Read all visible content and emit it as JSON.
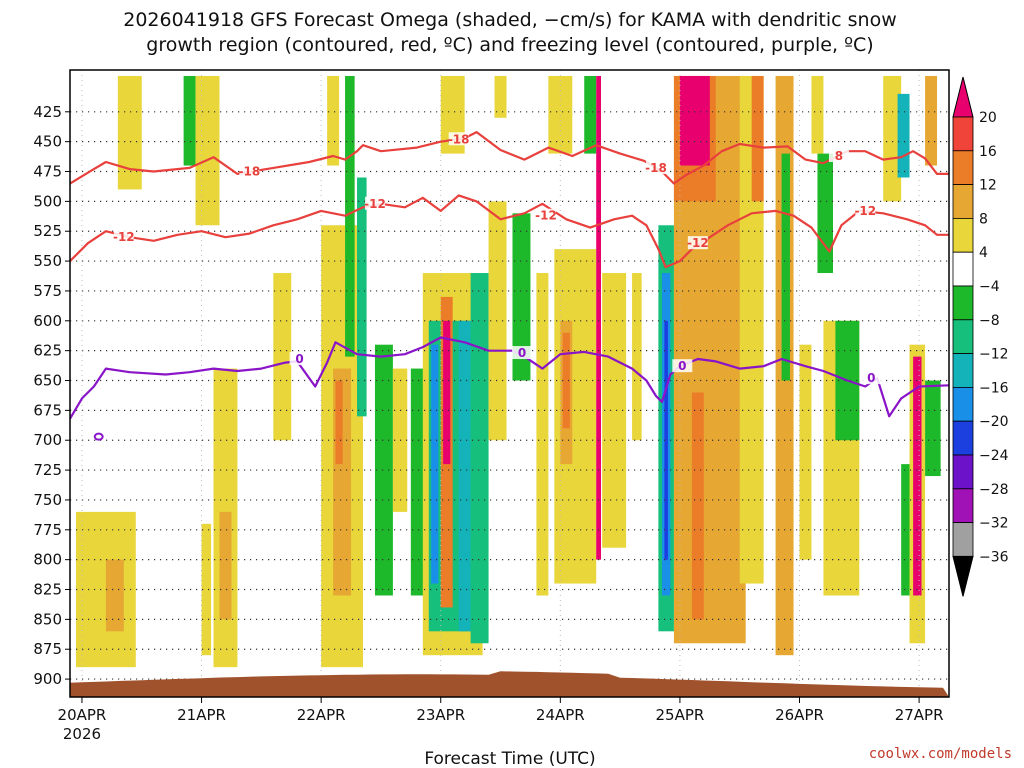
{
  "chart_data": {
    "type": "heatmap",
    "title_line1": "2026041918 GFS Forecast Omega (shaded, −cm/s) for KAMA with dendritic snow",
    "title_line2": "growth region (contoured, red, ºC) and freezing level (contoured, purple, ºC)",
    "xlabel": "Forecast Time (UTC)",
    "credit": "coolwx.com/models",
    "x_ticks": [
      "20APR",
      "21APR",
      "22APR",
      "23APR",
      "24APR",
      "25APR",
      "26APR",
      "27APR"
    ],
    "x_tick_sub": "2026",
    "x_range_days": [
      -0.1,
      7.25
    ],
    "y_ticks": [
      "425",
      "450",
      "475",
      "500",
      "525",
      "550",
      "575",
      "600",
      "625",
      "650",
      "675",
      "700",
      "725",
      "750",
      "775",
      "800",
      "825",
      "850",
      "875",
      "900"
    ],
    "y_range_hpa": [
      390,
      915
    ],
    "colorbar": {
      "labels": [
        "20",
        "16",
        "12",
        "8",
        "4",
        "−4",
        "−8",
        "−12",
        "−16",
        "−20",
        "−24",
        "−28",
        "−32",
        "−36"
      ],
      "colors": [
        "#e8006e",
        "#f0443a",
        "#ec7d28",
        "#e6a733",
        "#e8d63a",
        "#ffffff",
        "#1eb82b",
        "#16c07c",
        "#14b3ba",
        "#1a8fe8",
        "#1c3fe0",
        "#6c12c8",
        "#a012b5",
        "#a0a0a0",
        "#000000"
      ]
    },
    "contour_labels": {
      "dendritic_minus18": "-18",
      "dendritic_minus12": "-12",
      "dendritic_minus8": "8",
      "freezing": "0"
    },
    "contour_colors": {
      "dendritic": "#e8403c",
      "freezing": "#8a14c8"
    },
    "ground_color": "#a0522d",
    "omega_features": [
      {
        "x0": -0.05,
        "x1": 0.45,
        "p0": 760,
        "p1": 890,
        "v": 4
      },
      {
        "x0": 0.2,
        "x1": 0.35,
        "p0": 800,
        "p1": 860,
        "v": 8
      },
      {
        "x0": 0.3,
        "x1": 0.5,
        "p0": 395,
        "p1": 490,
        "v": 4
      },
      {
        "x0": 0.85,
        "x1": 0.95,
        "p0": 395,
        "p1": 470,
        "v": -6
      },
      {
        "x0": 0.95,
        "x1": 1.15,
        "p0": 395,
        "p1": 520,
        "v": 4
      },
      {
        "x0": 1.1,
        "x1": 1.3,
        "p0": 640,
        "p1": 890,
        "v": 4
      },
      {
        "x0": 1.15,
        "x1": 1.25,
        "p0": 760,
        "p1": 850,
        "v": 8
      },
      {
        "x0": 1.0,
        "x1": 1.08,
        "p0": 770,
        "p1": 880,
        "v": 4
      },
      {
        "x0": 1.6,
        "x1": 1.75,
        "p0": 560,
        "p1": 700,
        "v": 4
      },
      {
        "x0": 2.0,
        "x1": 2.35,
        "p0": 520,
        "p1": 890,
        "v": 4
      },
      {
        "x0": 2.1,
        "x1": 2.25,
        "p0": 640,
        "p1": 830,
        "v": 8
      },
      {
        "x0": 2.12,
        "x1": 2.18,
        "p0": 650,
        "p1": 720,
        "v": 12
      },
      {
        "x0": 2.05,
        "x1": 2.15,
        "p0": 395,
        "p1": 470,
        "v": 4
      },
      {
        "x0": 2.2,
        "x1": 2.28,
        "p0": 395,
        "p1": 630,
        "v": -6
      },
      {
        "x0": 2.3,
        "x1": 2.38,
        "p0": 480,
        "p1": 680,
        "v": -10
      },
      {
        "x0": 2.45,
        "x1": 2.6,
        "p0": 620,
        "p1": 830,
        "v": -6
      },
      {
        "x0": 2.6,
        "x1": 2.72,
        "p0": 640,
        "p1": 760,
        "v": 4
      },
      {
        "x0": 2.75,
        "x1": 2.9,
        "p0": 640,
        "p1": 830,
        "v": -6
      },
      {
        "x0": 2.92,
        "x1": 3.0,
        "p0": 700,
        "p1": 850,
        "v": 4
      },
      {
        "x0": 2.85,
        "x1": 3.35,
        "p0": 560,
        "p1": 880,
        "v": 4
      },
      {
        "x0": 2.9,
        "x1": 3.35,
        "p0": 600,
        "p1": 860,
        "v": -10
      },
      {
        "x0": 2.92,
        "x1": 2.98,
        "p0": 620,
        "p1": 820,
        "v": -18
      },
      {
        "x0": 3.0,
        "x1": 3.1,
        "p0": 580,
        "p1": 840,
        "v": 14
      },
      {
        "x0": 3.02,
        "x1": 3.08,
        "p0": 600,
        "p1": 720,
        "v": 20
      },
      {
        "x0": 3.15,
        "x1": 3.25,
        "p0": 600,
        "p1": 860,
        "v": -14
      },
      {
        "x0": 3.25,
        "x1": 3.4,
        "p0": 560,
        "p1": 870,
        "v": -8
      },
      {
        "x0": 3.0,
        "x1": 3.2,
        "p0": 395,
        "p1": 460,
        "v": 4
      },
      {
        "x0": 3.4,
        "x1": 3.55,
        "p0": 500,
        "p1": 700,
        "v": 4
      },
      {
        "x0": 3.45,
        "x1": 3.55,
        "p0": 395,
        "p1": 430,
        "v": 4
      },
      {
        "x0": 3.6,
        "x1": 3.75,
        "p0": 510,
        "p1": 650,
        "v": -6
      },
      {
        "x0": 3.8,
        "x1": 3.9,
        "p0": 560,
        "p1": 830,
        "v": 4
      },
      {
        "x0": 3.9,
        "x1": 4.1,
        "p0": 395,
        "p1": 460,
        "v": 4
      },
      {
        "x0": 3.95,
        "x1": 4.3,
        "p0": 540,
        "p1": 820,
        "v": 4
      },
      {
        "x0": 4.0,
        "x1": 4.1,
        "p0": 600,
        "p1": 720,
        "v": 8
      },
      {
        "x0": 4.02,
        "x1": 4.08,
        "p0": 610,
        "p1": 690,
        "v": 14
      },
      {
        "x0": 4.2,
        "x1": 4.3,
        "p0": 395,
        "p1": 460,
        "v": -6
      },
      {
        "x0": 4.3,
        "x1": 4.34,
        "p0": 395,
        "p1": 800,
        "v": 20
      },
      {
        "x0": 4.35,
        "x1": 4.55,
        "p0": 560,
        "p1": 790,
        "v": 4
      },
      {
        "x0": 4.6,
        "x1": 4.68,
        "p0": 560,
        "p1": 700,
        "v": 4
      },
      {
        "x0": 4.82,
        "x1": 4.95,
        "p0": 520,
        "p1": 860,
        "v": -8
      },
      {
        "x0": 4.85,
        "x1": 4.92,
        "p0": 560,
        "p1": 830,
        "v": -16
      },
      {
        "x0": 4.87,
        "x1": 4.9,
        "p0": 600,
        "p1": 800,
        "v": -22
      },
      {
        "x0": 4.95,
        "x1": 5.55,
        "p0": 395,
        "p1": 870,
        "v": 9
      },
      {
        "x0": 4.95,
        "x1": 5.3,
        "p0": 395,
        "p1": 500,
        "v": 13
      },
      {
        "x0": 5.0,
        "x1": 5.25,
        "p0": 395,
        "p1": 470,
        "v": 20
      },
      {
        "x0": 5.1,
        "x1": 5.2,
        "p0": 660,
        "p1": 850,
        "v": 14
      },
      {
        "x0": 5.5,
        "x1": 5.7,
        "p0": 395,
        "p1": 820,
        "v": 4
      },
      {
        "x0": 5.6,
        "x1": 5.7,
        "p0": 395,
        "p1": 500,
        "v": 12
      },
      {
        "x0": 5.8,
        "x1": 5.95,
        "p0": 395,
        "p1": 880,
        "v": 8
      },
      {
        "x0": 5.85,
        "x1": 5.92,
        "p0": 460,
        "p1": 650,
        "v": -6
      },
      {
        "x0": 6.0,
        "x1": 6.1,
        "p0": 620,
        "p1": 800,
        "v": 4
      },
      {
        "x0": 6.15,
        "x1": 6.28,
        "p0": 460,
        "p1": 560,
        "v": -6
      },
      {
        "x0": 6.1,
        "x1": 6.2,
        "p0": 395,
        "p1": 460,
        "v": 4
      },
      {
        "x0": 6.2,
        "x1": 6.5,
        "p0": 600,
        "p1": 830,
        "v": 4
      },
      {
        "x0": 6.3,
        "x1": 6.5,
        "p0": 600,
        "p1": 700,
        "v": -6
      },
      {
        "x0": 6.7,
        "x1": 6.85,
        "p0": 395,
        "p1": 500,
        "v": 4
      },
      {
        "x0": 6.82,
        "x1": 6.92,
        "p0": 410,
        "p1": 480,
        "v": -12
      },
      {
        "x0": 6.85,
        "x1": 6.95,
        "p0": 720,
        "p1": 830,
        "v": -6
      },
      {
        "x0": 6.92,
        "x1": 7.05,
        "p0": 620,
        "p1": 870,
        "v": 4
      },
      {
        "x0": 6.95,
        "x1": 7.02,
        "p0": 630,
        "p1": 830,
        "v": 20
      },
      {
        "x0": 7.05,
        "x1": 7.15,
        "p0": 395,
        "p1": 470,
        "v": 8
      },
      {
        "x0": 7.05,
        "x1": 7.18,
        "p0": 650,
        "p1": 730,
        "v": -6
      }
    ],
    "minus18_line": [
      [
        -0.1,
        485
      ],
      [
        0.1,
        473
      ],
      [
        0.2,
        467
      ],
      [
        0.4,
        473
      ],
      [
        0.6,
        475
      ],
      [
        0.9,
        472
      ],
      [
        1.1,
        463
      ],
      [
        1.3,
        477
      ],
      [
        1.6,
        472
      ],
      [
        1.9,
        467
      ],
      [
        2.1,
        462
      ],
      [
        2.2,
        465
      ],
      [
        2.3,
        458
      ],
      [
        2.35,
        453
      ],
      [
        2.5,
        458
      ],
      [
        2.8,
        455
      ],
      [
        3.0,
        450
      ],
      [
        3.2,
        447
      ],
      [
        3.3,
        442
      ],
      [
        3.5,
        457
      ],
      [
        3.7,
        465
      ],
      [
        3.9,
        455
      ],
      [
        4.1,
        462
      ],
      [
        4.3,
        453
      ],
      [
        4.5,
        460
      ],
      [
        4.7,
        466
      ],
      [
        4.85,
        475
      ],
      [
        4.95,
        485
      ],
      [
        5.05,
        478
      ],
      [
        5.2,
        470
      ],
      [
        5.35,
        458
      ],
      [
        5.5,
        452
      ],
      [
        5.7,
        455
      ],
      [
        5.9,
        454
      ],
      [
        6.05,
        465
      ],
      [
        6.2,
        468
      ],
      [
        6.4,
        458
      ],
      [
        6.55,
        458
      ],
      [
        6.7,
        465
      ],
      [
        6.85,
        463
      ],
      [
        6.95,
        458
      ],
      [
        7.05,
        464
      ],
      [
        7.15,
        477
      ],
      [
        7.25,
        477
      ]
    ],
    "minus12_line": [
      [
        -0.1,
        550
      ],
      [
        0.05,
        535
      ],
      [
        0.2,
        525
      ],
      [
        0.4,
        530
      ],
      [
        0.6,
        533
      ],
      [
        0.8,
        528
      ],
      [
        1.0,
        525
      ],
      [
        1.2,
        530
      ],
      [
        1.4,
        527
      ],
      [
        1.6,
        520
      ],
      [
        1.8,
        515
      ],
      [
        2.0,
        508
      ],
      [
        2.2,
        512
      ],
      [
        2.35,
        505
      ],
      [
        2.5,
        502
      ],
      [
        2.7,
        505
      ],
      [
        2.85,
        497
      ],
      [
        3.0,
        508
      ],
      [
        3.15,
        495
      ],
      [
        3.3,
        500
      ],
      [
        3.5,
        515
      ],
      [
        3.7,
        510
      ],
      [
        3.85,
        502
      ],
      [
        4.05,
        515
      ],
      [
        4.25,
        522
      ],
      [
        4.45,
        515
      ],
      [
        4.6,
        512
      ],
      [
        4.72,
        520
      ],
      [
        4.82,
        540
      ],
      [
        4.88,
        555
      ],
      [
        5.0,
        550
      ],
      [
        5.1,
        540
      ],
      [
        5.25,
        530
      ],
      [
        5.4,
        520
      ],
      [
        5.6,
        510
      ],
      [
        5.8,
        508
      ],
      [
        5.95,
        512
      ],
      [
        6.1,
        522
      ],
      [
        6.25,
        542
      ],
      [
        6.35,
        520
      ],
      [
        6.5,
        508
      ],
      [
        6.7,
        510
      ],
      [
        6.9,
        515
      ],
      [
        7.05,
        520
      ],
      [
        7.15,
        528
      ],
      [
        7.25,
        528
      ]
    ],
    "freezing_line": [
      [
        -0.1,
        682
      ],
      [
        0.0,
        665
      ],
      [
        0.1,
        655
      ],
      [
        0.2,
        640
      ],
      [
        0.4,
        643
      ],
      [
        0.7,
        645
      ],
      [
        0.9,
        643
      ],
      [
        1.1,
        640
      ],
      [
        1.3,
        642
      ],
      [
        1.5,
        640
      ],
      [
        1.7,
        635
      ],
      [
        1.8,
        634
      ],
      [
        1.95,
        655
      ],
      [
        2.05,
        635
      ],
      [
        2.12,
        618
      ],
      [
        2.3,
        628
      ],
      [
        2.5,
        630
      ],
      [
        2.7,
        628
      ],
      [
        2.85,
        622
      ],
      [
        3.0,
        614
      ],
      [
        3.2,
        618
      ],
      [
        3.4,
        625
      ],
      [
        3.6,
        625
      ],
      [
        3.7,
        630
      ],
      [
        3.85,
        640
      ],
      [
        4.0,
        628
      ],
      [
        4.2,
        626
      ],
      [
        4.4,
        630
      ],
      [
        4.6,
        640
      ],
      [
        4.72,
        650
      ],
      [
        4.8,
        663
      ],
      [
        4.85,
        668
      ],
      [
        4.92,
        645
      ],
      [
        5.0,
        638
      ],
      [
        5.15,
        632
      ],
      [
        5.3,
        634
      ],
      [
        5.5,
        640
      ],
      [
        5.7,
        638
      ],
      [
        5.85,
        632
      ],
      [
        6.05,
        638
      ],
      [
        6.2,
        642
      ],
      [
        6.4,
        650
      ],
      [
        6.55,
        655
      ],
      [
        6.65,
        648
      ],
      [
        6.75,
        680
      ],
      [
        6.85,
        665
      ],
      [
        7.0,
        655
      ],
      [
        7.25,
        654
      ]
    ],
    "freezing_blob": [
      0.14,
      697
    ]
  }
}
